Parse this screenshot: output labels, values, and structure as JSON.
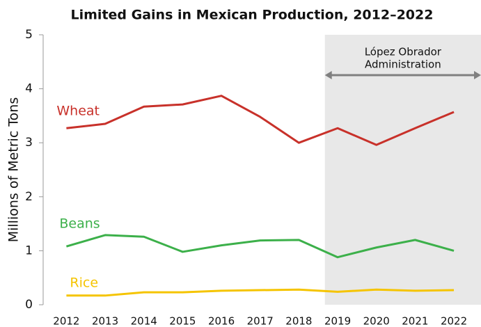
{
  "chart_data": {
    "type": "line",
    "title": "Limited Gains in Mexican Production, 2012–2022",
    "y_label": "Millions of Metric Tons",
    "x": [
      2012,
      2013,
      2014,
      2015,
      2016,
      2017,
      2018,
      2019,
      2020,
      2021,
      2022
    ],
    "xlim": [
      2011.4,
      2022.7
    ],
    "ylim": [
      0,
      5
    ],
    "yticks": [
      0,
      1,
      2,
      3,
      4,
      5
    ],
    "grid": false,
    "shaded_region": [
      2018.67,
      2022.7
    ],
    "annotation": [
      "López Obrador",
      "Administration"
    ],
    "series": [
      {
        "name": "Wheat",
        "color": "#c8312a",
        "values": [
          3.27,
          3.35,
          3.67,
          3.71,
          3.87,
          3.48,
          3.0,
          3.27,
          2.96,
          3.27,
          3.57
        ]
      },
      {
        "name": "Beans",
        "color": "#3cb04a",
        "values": [
          1.08,
          1.29,
          1.26,
          0.98,
          1.1,
          1.19,
          1.2,
          0.88,
          1.06,
          1.2,
          1.0
        ]
      },
      {
        "name": "Rice",
        "color": "#f5c400",
        "values": [
          0.17,
          0.17,
          0.23,
          0.23,
          0.26,
          0.27,
          0.28,
          0.24,
          0.28,
          0.26,
          0.27
        ]
      }
    ]
  }
}
